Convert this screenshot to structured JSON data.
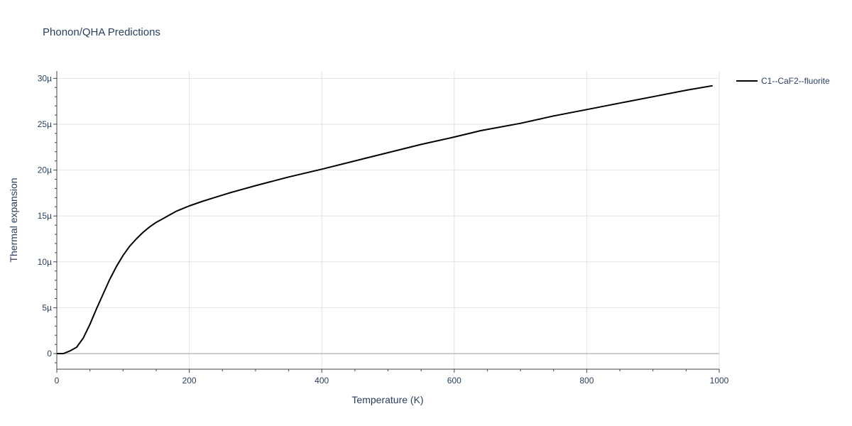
{
  "chart_data": {
    "type": "line",
    "title": "Phonon/QHA Predictions",
    "xlabel": "Temperature (K)",
    "ylabel": "Thermal expansion",
    "xlim": [
      0,
      1000
    ],
    "ylim": [
      -1.7,
      30.8
    ],
    "x_ticks": [
      0,
      200,
      400,
      600,
      800,
      1000
    ],
    "x_tick_labels": [
      "0",
      "200",
      "400",
      "600",
      "800",
      "1000"
    ],
    "y_ticks": [
      0,
      5,
      10,
      15,
      20,
      25,
      30
    ],
    "y_tick_labels": [
      "0",
      "5µ",
      "10µ",
      "15µ",
      "20µ",
      "25µ",
      "30µ"
    ],
    "y_unit_scale": "1e-6",
    "grid": true,
    "legend_position": "top-right",
    "series": [
      {
        "name": "C1--CaF2--fluorite",
        "color": "#000000",
        "x": [
          0,
          10,
          20,
          30,
          40,
          50,
          60,
          70,
          80,
          90,
          100,
          110,
          120,
          130,
          140,
          150,
          160,
          170,
          180,
          190,
          200,
          220,
          240,
          260,
          280,
          300,
          350,
          400,
          450,
          500,
          550,
          600,
          640,
          700,
          750,
          800,
          850,
          900,
          950,
          990
        ],
        "y": [
          0,
          0.0,
          0.3,
          0.7,
          1.7,
          3.2,
          4.9,
          6.5,
          8.1,
          9.5,
          10.7,
          11.7,
          12.5,
          13.2,
          13.8,
          14.3,
          14.7,
          15.1,
          15.5,
          15.8,
          16.1,
          16.6,
          17.05,
          17.5,
          17.9,
          18.3,
          19.25,
          20.1,
          21.0,
          21.9,
          22.8,
          23.6,
          24.3,
          25.1,
          25.9,
          26.6,
          27.3,
          28.0,
          28.7,
          29.2
        ]
      }
    ]
  }
}
